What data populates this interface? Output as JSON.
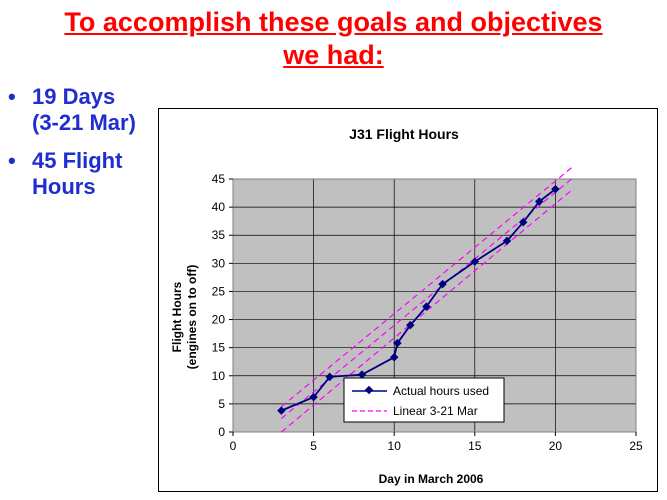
{
  "slide": {
    "title_line1": "To accomplish these goals and objectives",
    "title_line2": "we had:",
    "bullets": [
      {
        "line1": "19 Days",
        "line2": "(3-21 Mar)"
      },
      {
        "line1": "45 Flight",
        "line2": "Hours"
      }
    ]
  },
  "colors": {
    "title": "#ff0000",
    "bullet_text": "#1f2ecf",
    "plot_bg": "#c0c0c0",
    "actual_series": "#000080",
    "linear_series": "#ff00ff"
  },
  "chart_data": {
    "type": "line",
    "title": "J31 Flight Hours",
    "xlabel": "Day in March 2006",
    "ylabel_line1": "Flight Hours",
    "ylabel_line2": "(engines on to off)",
    "xlim": [
      0,
      25
    ],
    "ylim": [
      0,
      45
    ],
    "x_ticks": [
      0,
      5,
      10,
      15,
      20,
      25
    ],
    "y_ticks": [
      0,
      5,
      10,
      15,
      20,
      25,
      30,
      35,
      40,
      45
    ],
    "grid": true,
    "legend_position": "bottom-center",
    "series": [
      {
        "name": "Actual hours used",
        "style": "solid-with-diamond-markers",
        "x": [
          3,
          5,
          6,
          8,
          10,
          10.2,
          11,
          12,
          13,
          15,
          17,
          18,
          19,
          20
        ],
        "y": [
          3.8,
          6.2,
          9.8,
          10.2,
          13.3,
          15.8,
          19,
          22.3,
          26.3,
          30.3,
          34,
          37.3,
          41,
          43.2
        ]
      },
      {
        "name": "Linear 3-21 Mar",
        "style": "dashed",
        "x": [
          3,
          21
        ],
        "y": [
          2.4,
          45
        ]
      }
    ],
    "linear_upper": {
      "x": [
        3,
        21
      ],
      "y": [
        4.5,
        47
      ]
    },
    "linear_lower": {
      "x": [
        3,
        21
      ],
      "y": [
        0,
        43
      ]
    }
  }
}
